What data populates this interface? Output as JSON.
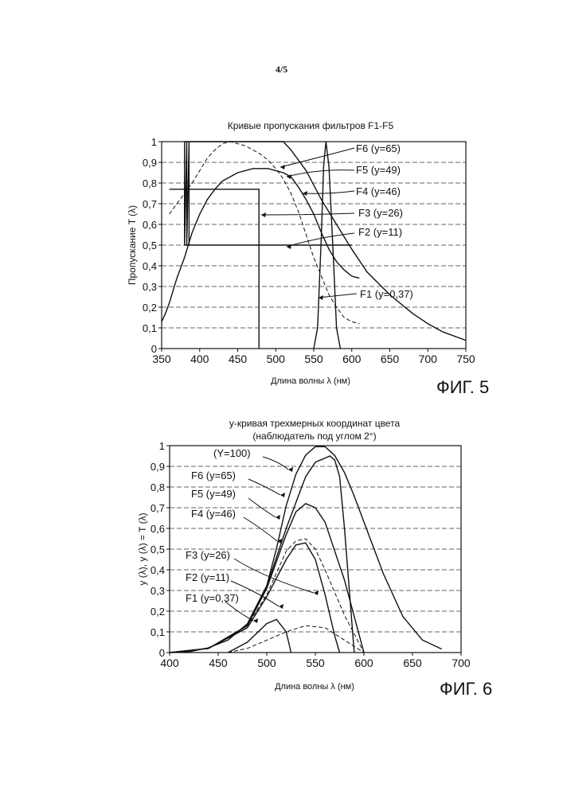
{
  "page_number": "4/5",
  "figures": [
    {
      "title": "Кривые пропускания фильтров F1-F5",
      "caption": "ФИГ. 5",
      "xlabel": "Длина волны λ (нм)",
      "ylabel": "Пропускание T (λ)",
      "x_ticks": [
        "350",
        "400",
        "450",
        "500",
        "550",
        "600",
        "650",
        "700",
        "750"
      ],
      "y_ticks": [
        "0",
        "0,1",
        "0,2",
        "0,3",
        "0,4",
        "0,5",
        "0,6",
        "0,7",
        "0,8",
        "0,9",
        "1"
      ],
      "labels": [
        "F6 (y=65)",
        "F5 (y=49)",
        "F4 (y=46)",
        "F3 (y=26)",
        "F2 (y=11)",
        "F1 (y=0,37)"
      ]
    },
    {
      "title": "y-кривая трехмерных координат цвета",
      "subtitle": "(наблюдатель под углом 2°)",
      "caption": "ФИГ. 6",
      "xlabel": "Длина волны λ (нм)",
      "ylabel": "y (λ), y (λ) = T (λ)",
      "x_ticks": [
        "400",
        "450",
        "500",
        "550",
        "600",
        "650",
        "700"
      ],
      "y_ticks": [
        "0",
        "0,1",
        "0,2",
        "0,3",
        "0,4",
        "0,5",
        "0,6",
        "0,7",
        "0,8",
        "0,9",
        "1"
      ],
      "labels": [
        "(Y=100)",
        "F6 (y=65)",
        "F5 (y=49)",
        "F4 (y=46)",
        "F3 (y=26)",
        "F2 (y=11)",
        "F1 (y=0,37)"
      ]
    }
  ],
  "chart_data": [
    {
      "type": "line",
      "title": "Кривые пропускания фильтров F1-F5",
      "xlabel": "Длина волны λ (нм)",
      "ylabel": "Пропускание T (λ)",
      "xlim": [
        350,
        750
      ],
      "ylim": [
        0,
        1
      ],
      "grid": "horizontal dashed",
      "series": [
        {
          "name": "F1 (y=0,37)",
          "style": "solid",
          "x": [
            380,
            383,
            390,
            400,
            420,
            500,
            550,
            570,
            590,
            600
          ],
          "y": [
            0.5,
            0.5,
            0.5,
            0.5,
            0.5,
            0.5,
            0.5,
            0.5,
            0.5,
            0.5
          ]
        },
        {
          "name": "F1 (y=0,37)",
          "style": "solid",
          "x": [
            380,
            380,
            383,
            383,
            386,
            386
          ],
          "y": [
            1,
            0.5,
            1,
            0.5,
            1,
            0.5
          ]
        },
        {
          "name": "F2 (y=11)",
          "style": "solid",
          "x": [
            360,
            360,
            478,
            478
          ],
          "y": [
            0.77,
            0.77,
            0.77,
            0
          ]
        },
        {
          "name": "F3 (y=26)",
          "style": "solid",
          "x": [
            350,
            355,
            360,
            370,
            380,
            390,
            400,
            410,
            420,
            430,
            440,
            450,
            460,
            470,
            480,
            490,
            500,
            510,
            520,
            530,
            540,
            550,
            560,
            570,
            580,
            590,
            600,
            610
          ],
          "y": [
            0.13,
            0.17,
            0.22,
            0.34,
            0.44,
            0.56,
            0.65,
            0.72,
            0.77,
            0.81,
            0.83,
            0.85,
            0.86,
            0.87,
            0.87,
            0.87,
            0.86,
            0.85,
            0.83,
            0.78,
            0.72,
            0.65,
            0.56,
            0.48,
            0.42,
            0.38,
            0.35,
            0.34
          ]
        },
        {
          "name": "F4 (y=46)",
          "style": "dashed",
          "x": [
            360,
            370,
            380,
            390,
            400,
            410,
            420,
            430,
            440,
            450,
            460,
            470,
            480,
            490,
            500,
            510,
            520,
            530,
            540,
            550,
            560,
            570,
            580,
            590,
            600,
            610
          ],
          "y": [
            0.65,
            0.7,
            0.75,
            0.8,
            0.86,
            0.92,
            0.96,
            0.99,
            1,
            0.99,
            0.98,
            0.96,
            0.94,
            0.91,
            0.87,
            0.82,
            0.75,
            0.66,
            0.55,
            0.44,
            0.35,
            0.26,
            0.2,
            0.15,
            0.13,
            0.12
          ]
        },
        {
          "name": "F5 (y=49)",
          "style": "solid",
          "x": [
            380,
            390,
            400,
            420,
            450,
            480,
            490,
            500,
            510,
            520,
            540,
            560,
            580,
            600,
            620,
            650,
            680,
            700,
            720,
            750
          ],
          "y": [
            1,
            1,
            1,
            1,
            1,
            1,
            1,
            1,
            1,
            0.96,
            0.86,
            0.72,
            0.6,
            0.48,
            0.37,
            0.26,
            0.17,
            0.12,
            0.08,
            0.04
          ]
        },
        {
          "name": "F6 (y=65)",
          "style": "solid",
          "x": [
            550,
            555,
            560,
            563,
            566,
            570,
            575,
            580,
            585
          ],
          "y": [
            0,
            0.1,
            0.55,
            0.88,
            1,
            0.88,
            0.5,
            0.1,
            0
          ]
        }
      ]
    },
    {
      "type": "line",
      "title": "y-кривая трехмерных координат цвета",
      "subtitle": "(наблюдатель под углом 2°)",
      "xlabel": "Длина волны λ (нм)",
      "ylabel": "y (λ), y (λ) = T (λ)",
      "xlim": [
        400,
        700
      ],
      "ylim": [
        0,
        1
      ],
      "grid": "horizontal dashed",
      "series": [
        {
          "name": "(Y=100)",
          "style": "solid",
          "x": [
            400,
            420,
            440,
            460,
            480,
            500,
            510,
            520,
            530,
            540,
            550,
            560,
            570,
            580,
            590,
            600,
            620,
            640,
            660,
            680
          ],
          "y": [
            0,
            0.004,
            0.023,
            0.06,
            0.139,
            0.323,
            0.503,
            0.71,
            0.862,
            0.954,
            0.995,
            0.995,
            0.952,
            0.87,
            0.757,
            0.631,
            0.381,
            0.175,
            0.061,
            0.017
          ]
        },
        {
          "name": "F6 (y=65)",
          "style": "solid",
          "x": [
            400,
            440,
            480,
            500,
            520,
            540,
            550,
            555,
            560,
            565,
            570,
            575,
            580,
            590
          ],
          "y": [
            0,
            0.02,
            0.13,
            0.32,
            0.6,
            0.85,
            0.92,
            0.93,
            0.94,
            0.95,
            0.93,
            0.85,
            0.6,
            0
          ]
        },
        {
          "name": "F5 (y=49)",
          "style": "solid",
          "x": [
            400,
            440,
            480,
            500,
            520,
            530,
            540,
            550,
            560,
            580,
            600
          ],
          "y": [
            0,
            0.02,
            0.13,
            0.31,
            0.57,
            0.68,
            0.72,
            0.7,
            0.63,
            0.35,
            0
          ]
        },
        {
          "name": "F4 (y=46)",
          "style": "dashed",
          "x": [
            400,
            440,
            480,
            500,
            520,
            530,
            540,
            550,
            560,
            580,
            600
          ],
          "y": [
            0,
            0.02,
            0.13,
            0.28,
            0.49,
            0.54,
            0.55,
            0.5,
            0.4,
            0.18,
            0
          ]
        },
        {
          "name": "F3 (y=26)",
          "style": "solid",
          "x": [
            400,
            440,
            480,
            500,
            520,
            530,
            540,
            550,
            560,
            570,
            575
          ],
          "y": [
            0,
            0.02,
            0.12,
            0.27,
            0.45,
            0.52,
            0.53,
            0.45,
            0.28,
            0.08,
            0
          ]
        },
        {
          "name": "F2 (y=11)",
          "style": "dashed",
          "x": [
            460,
            480,
            500,
            520,
            540,
            560,
            580,
            600
          ],
          "y": [
            0,
            0.02,
            0.06,
            0.1,
            0.13,
            0.12,
            0.06,
            0
          ]
        },
        {
          "name": "F1 (y=0,37)",
          "style": "solid",
          "x": [
            460,
            480,
            500,
            510,
            520,
            525
          ],
          "y": [
            0,
            0.05,
            0.14,
            0.16,
            0.1,
            0
          ]
        }
      ]
    }
  ]
}
